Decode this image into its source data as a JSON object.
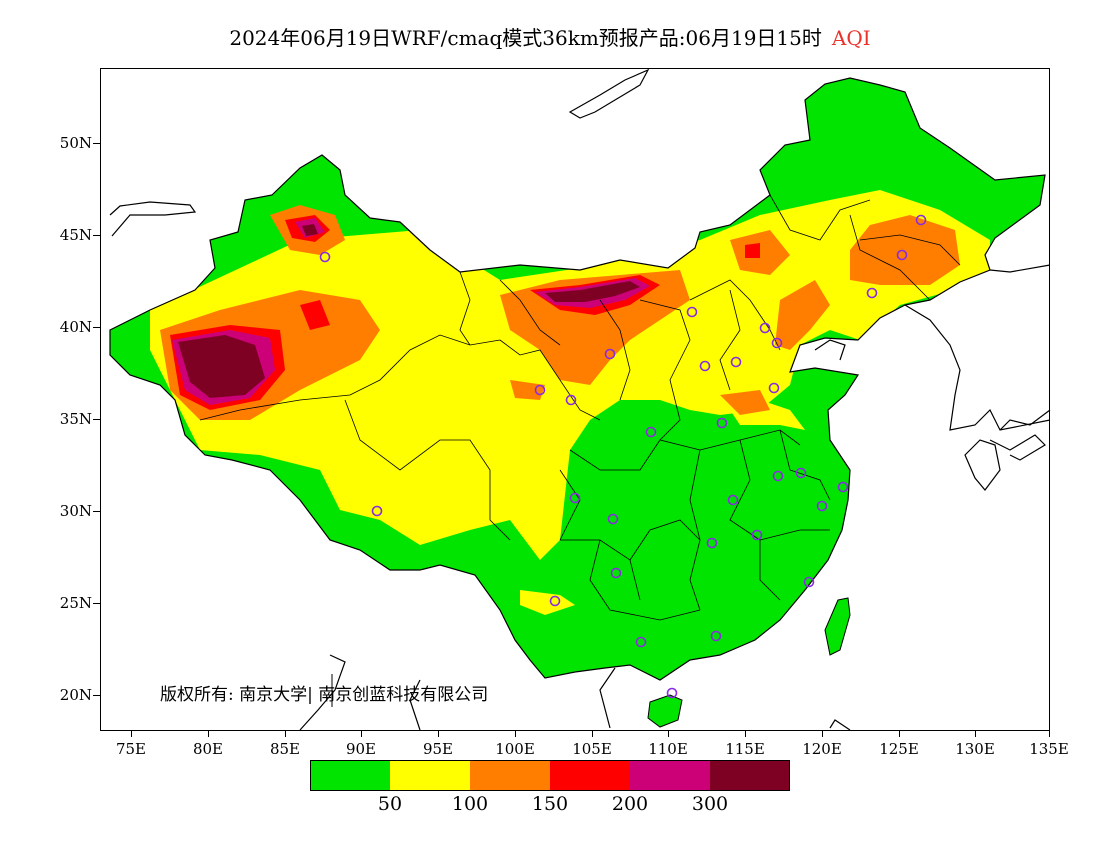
{
  "title": {
    "main": "2024年06月19日WRF/cmaq模式36km预报产品:06月19日15时",
    "product": "AQI"
  },
  "axes": {
    "lat_labels": [
      "50N",
      "45N",
      "40N",
      "35N",
      "30N",
      "25N",
      "20N"
    ],
    "lon_labels": [
      "75E",
      "80E",
      "85E",
      "90E",
      "95E",
      "100E",
      "105E",
      "110E",
      "115E",
      "120E",
      "125E",
      "130E",
      "135E"
    ]
  },
  "copyright": "版权所有: 南京大学| 南京创蓝科技有限公司",
  "legend": {
    "colors": [
      "#00e400",
      "#ffff00",
      "#ff7e00",
      "#ff0000",
      "#cc0077",
      "#7e0023"
    ],
    "labels": [
      "50",
      "100",
      "150",
      "200",
      "300"
    ]
  },
  "colors": {
    "ocean": "#ffffff",
    "station_marker": "#8a2be2"
  }
}
